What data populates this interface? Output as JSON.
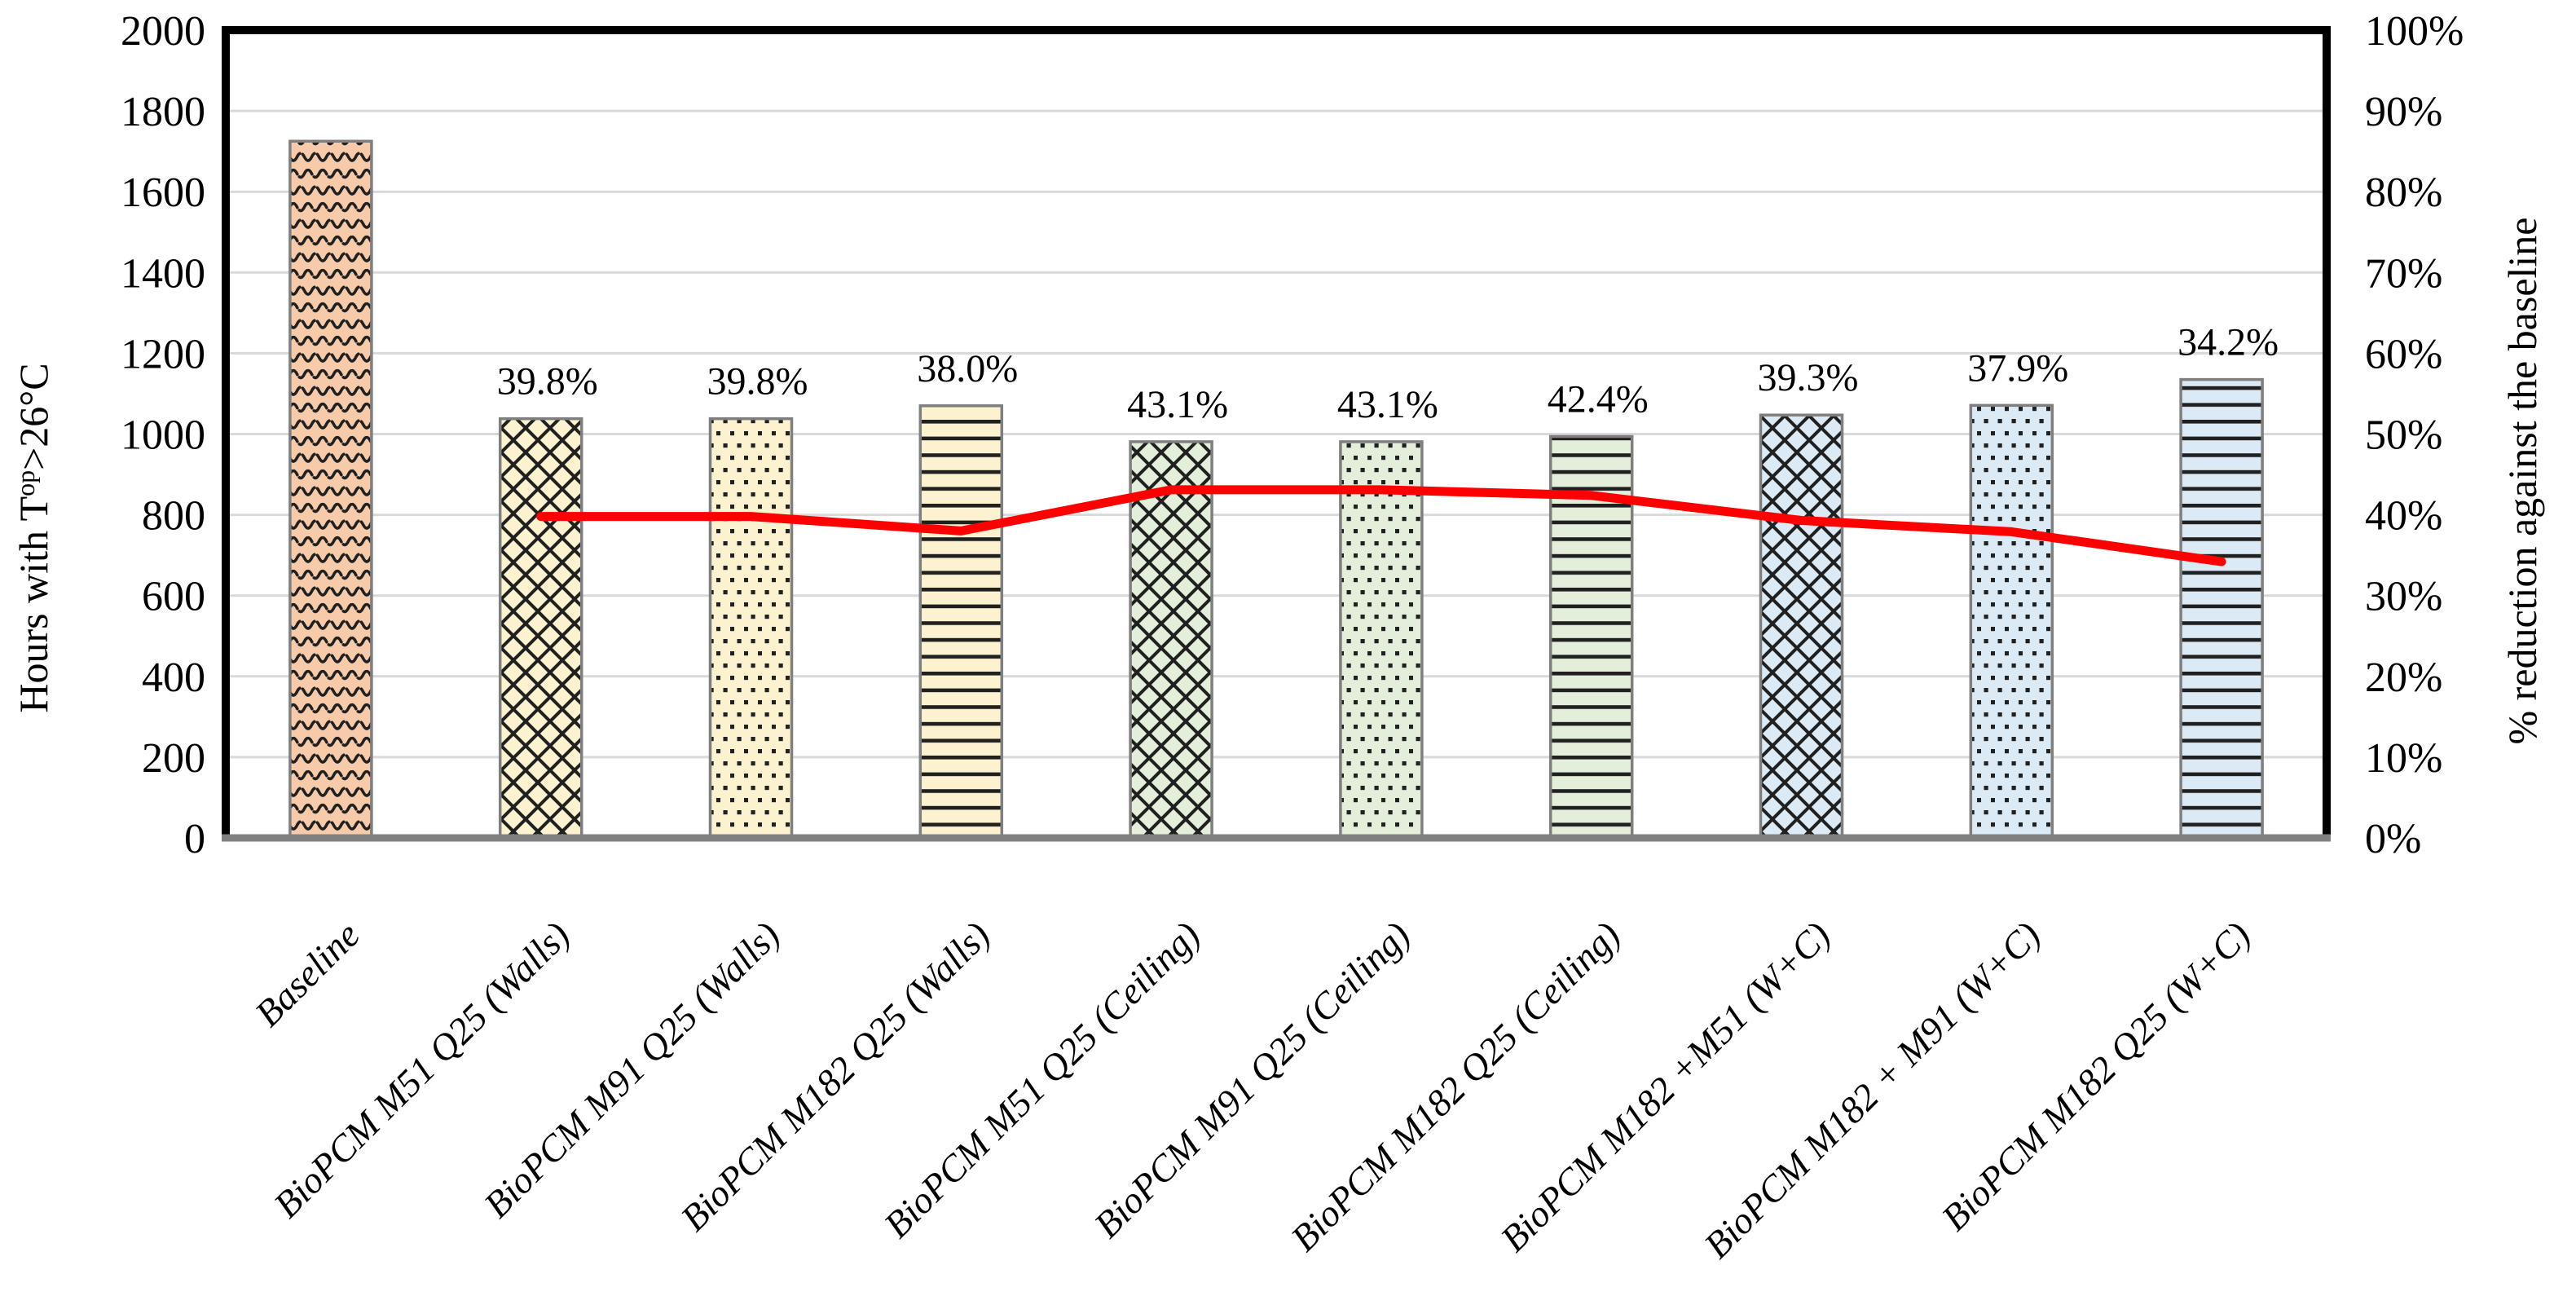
{
  "figure": {
    "background": "#FFFFFF"
  },
  "chart_data": {
    "type": "combo bar+line",
    "title": "",
    "categories": [
      "Baseline",
      "BioPCM M51 Q25 (Walls)",
      "BioPCM M91 Q25 (Walls)",
      "BioPCM M182 Q25 (Walls)",
      "BioPCM M51 Q25 (Ceiling)",
      "BioPCM M91 Q25 (Ceiling)",
      "BioPCM M182 Q25 (Ceiling)",
      "BioPCM M182 +M51 (W+C)",
      "BioPCM M182 + M91 (W+C)",
      "BioPCM M182 Q25 (W+C)"
    ],
    "bars": {
      "name": "Hours with Top>26°C",
      "axis": "left",
      "values": [
        1725,
        1038,
        1038,
        1070,
        981,
        981,
        994,
        1047,
        1071,
        1135
      ],
      "fills": [
        "#F7CBAA",
        "#FCF2D0",
        "#FCF2D0",
        "#FCF2D0",
        "#E3EFDB",
        "#E3EFDB",
        "#E3EFDB",
        "#DCEAF6",
        "#DCEAF6",
        "#DCEAF6"
      ],
      "patterns": [
        "wave",
        "cross",
        "dots",
        "hlines",
        "cross",
        "dots",
        "hlines",
        "cross",
        "dots",
        "hlines"
      ],
      "border_color": "#7F7F7F",
      "pattern_ink": "#202020"
    },
    "line": {
      "name": "% reduction against the baseline",
      "axis": "right",
      "color": "#FF0000",
      "values": [
        null,
        39.8,
        39.8,
        38.0,
        43.1,
        43.1,
        42.4,
        39.3,
        37.9,
        34.2
      ],
      "data_labels": [
        null,
        "39.8%",
        "39.8%",
        "38.0%",
        "43.1%",
        "43.1%",
        "42.4%",
        "39.3%",
        "37.9%",
        "34.2%"
      ]
    },
    "axes": {
      "y_left": {
        "title": "Hours with Tᵒᵖ>26°C",
        "title_parts": [
          "Hours with T",
          "op",
          ">26°C"
        ],
        "min": 0,
        "max": 2000,
        "step": 200,
        "ticks": [
          "0",
          "200",
          "400",
          "600",
          "800",
          "1000",
          "1200",
          "1400",
          "1600",
          "1800",
          "2000"
        ]
      },
      "y_right": {
        "title": "% reduction against the baseline",
        "min": 0,
        "max": 100,
        "step": 10,
        "ticks": [
          "0%",
          "10%",
          "20%",
          "30%",
          "40%",
          "50%",
          "60%",
          "70%",
          "80%",
          "90%",
          "100%"
        ]
      },
      "x": {
        "labels_rotation_deg": -45,
        "labels_italic": true
      }
    },
    "gridlines": {
      "color": "#D9D9D9",
      "values": [
        200,
        400,
        600,
        800,
        1000,
        1200,
        1400,
        1600,
        1800
      ]
    },
    "frame": {
      "top_left_right_color": "#000000",
      "bottom_color": "#808080"
    },
    "legend": "none"
  }
}
